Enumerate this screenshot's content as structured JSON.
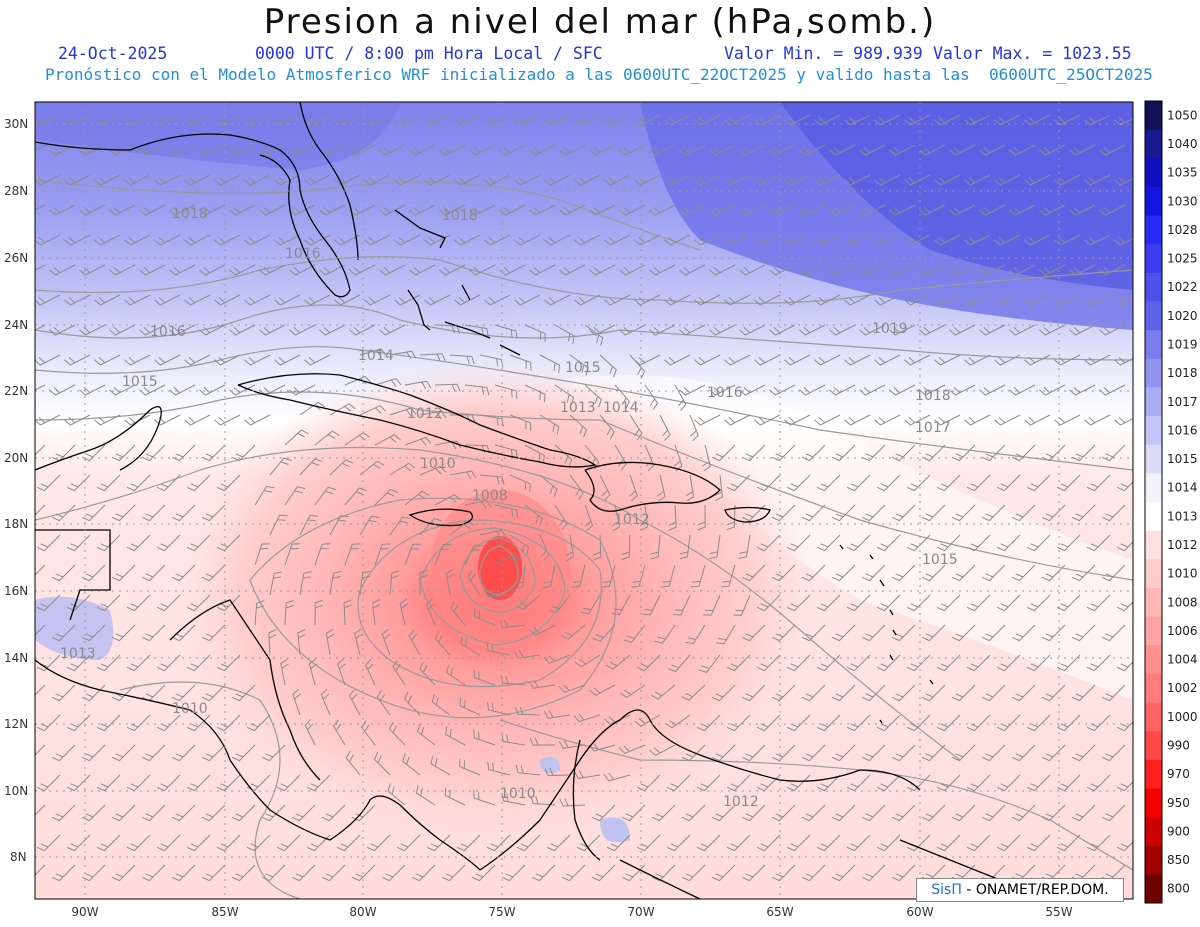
{
  "header": {
    "title": "Presion a nivel del mar (hPa,somb.)",
    "date": "24-Oct-2025",
    "valid_time": "0000 UTC / 8:00 pm Hora Local / SFC",
    "min_label": "Valor Min. = 989.939",
    "max_label": "Valor Max. = 1023.55",
    "subtitle": "Pronóstico con el Modelo Atmosferico WRF inicializado a las 0600UTC_22OCT2025 y valido hasta las  0600UTC_25OCT2025"
  },
  "colors": {
    "low_center": "#ff5a5a",
    "high_area": "#5c62e6",
    "neutral": "#ffffff",
    "title_blue": "#2233ee",
    "subtitle_cyan": "#1f8fe0"
  },
  "map": {
    "lon_labels": [
      "90W",
      "85W",
      "80W",
      "75W",
      "70W",
      "65W",
      "60W",
      "55W"
    ],
    "lat_labels": [
      "30N",
      "28N",
      "26N",
      "24N",
      "22N",
      "20N",
      "18N",
      "16N",
      "14N",
      "12N",
      "10N",
      "8N"
    ],
    "isobar_labels": [
      "1016",
      "1017",
      "1015",
      "1014",
      "1013",
      "1012",
      "1010",
      "1008",
      "1018",
      "1019"
    ],
    "contour_labels_shown": [
      {
        "text": "1018"
      },
      {
        "text": "1018"
      },
      {
        "text": "1016"
      },
      {
        "text": "1016"
      },
      {
        "text": "1015"
      },
      {
        "text": "1014"
      },
      {
        "text": "1012"
      },
      {
        "text": "1010"
      },
      {
        "text": "1008"
      },
      {
        "text": "1015"
      },
      {
        "text": "1013"
      },
      {
        "text": "1014"
      },
      {
        "text": "1016"
      },
      {
        "text": "1017"
      },
      {
        "text": "1018"
      },
      {
        "text": "1019"
      },
      {
        "text": "1015"
      },
      {
        "text": "1013"
      },
      {
        "text": "1010"
      },
      {
        "text": "1012"
      },
      {
        "text": "1012"
      },
      {
        "text": "1010"
      }
    ]
  },
  "colorbar": {
    "labels": [
      "1050",
      "1040",
      "1035",
      "1030",
      "1028",
      "1025",
      "1022",
      "1020",
      "1019",
      "1018",
      "1017",
      "1016",
      "1015",
      "1014",
      "1013",
      "1012",
      "1010",
      "1008",
      "1006",
      "1004",
      "1002",
      "1000",
      "990",
      "970",
      "950",
      "900",
      "850",
      "800"
    ],
    "colors": [
      "#10105a",
      "#1a1a90",
      "#1010c0",
      "#1515e0",
      "#2a2af5",
      "#3c3cf0",
      "#4e50ea",
      "#6064e8",
      "#7a7ded",
      "#9294f0",
      "#aaacf4",
      "#c3c4f7",
      "#dcdcfa",
      "#f2f2fd",
      "#ffffff",
      "#ffe0e0",
      "#ffcccc",
      "#ffb8b8",
      "#ffa4a4",
      "#ff9090",
      "#ff7c7c",
      "#ff6464",
      "#ff4848",
      "#ff2020",
      "#f50000",
      "#cc0000",
      "#a00000",
      "#700000"
    ]
  },
  "credit": {
    "brand": "SisΠ",
    "text": " - ONAMET/REP.DOM."
  }
}
